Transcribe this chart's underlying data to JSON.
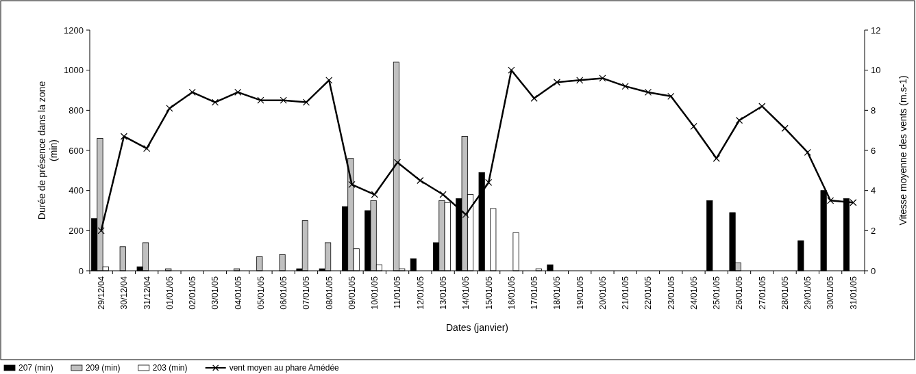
{
  "chart_data": {
    "type": "bar",
    "xlabel": "Dates (janvier)",
    "ylabel": "Durée de présence dans la zone (min)",
    "y2label": "Vitesse moyenne des vents (m.s-1)",
    "categories": [
      "29/12/04",
      "30/12/04",
      "31/12/04",
      "01/01/05",
      "02/01/05",
      "03/01/05",
      "04/01/05",
      "05/01/05",
      "06/01/05",
      "07/01/05",
      "08/01/05",
      "09/01/05",
      "10/01/05",
      "11/01/05",
      "12/01/05",
      "13/01/05",
      "14/01/05",
      "15/01/05",
      "16/01/05",
      "17/01/05",
      "18/01/05",
      "19/01/05",
      "20/01/05",
      "21/01/05",
      "22/01/05",
      "23/01/05",
      "24/01/05",
      "25/01/05",
      "26/01/05",
      "27/01/05",
      "28/01/05",
      "29/01/05",
      "30/01/05",
      "31/01/05"
    ],
    "series": [
      {
        "name": "207 (min)",
        "color": "#000000",
        "values": [
          260,
          null,
          20,
          null,
          null,
          null,
          null,
          null,
          null,
          10,
          10,
          320,
          300,
          null,
          60,
          140,
          360,
          490,
          null,
          null,
          30,
          null,
          null,
          null,
          null,
          null,
          null,
          350,
          290,
          null,
          null,
          150,
          400,
          360
        ]
      },
      {
        "name": "209 (min)",
        "color": "#c0c0c0",
        "values": [
          660,
          120,
          140,
          10,
          null,
          null,
          10,
          70,
          80,
          250,
          140,
          560,
          350,
          1040,
          null,
          350,
          670,
          null,
          null,
          null,
          null,
          null,
          null,
          null,
          null,
          null,
          null,
          null,
          40,
          null,
          null,
          null,
          null,
          null
        ]
      },
      {
        "name": "203 (min)",
        "color": "#ffffff",
        "values": [
          20,
          null,
          null,
          null,
          null,
          null,
          null,
          null,
          null,
          null,
          null,
          110,
          30,
          10,
          null,
          340,
          380,
          310,
          190,
          10,
          null,
          null,
          null,
          null,
          null,
          null,
          null,
          null,
          null,
          null,
          null,
          null,
          null,
          null
        ]
      },
      {
        "name": "vent moyen au phare Amédée",
        "type": "line",
        "axis": "y2",
        "color": "#000000",
        "values": [
          2.0,
          6.7,
          6.1,
          8.1,
          8.9,
          8.4,
          8.9,
          8.5,
          8.5,
          8.4,
          9.5,
          4.3,
          3.8,
          5.4,
          4.5,
          3.8,
          2.8,
          4.4,
          10.0,
          8.6,
          9.4,
          9.5,
          9.6,
          9.2,
          8.9,
          8.7,
          7.2,
          5.6,
          7.5,
          8.2,
          7.1,
          5.9,
          3.5,
          3.4
        ]
      }
    ],
    "ylim": [
      0,
      1200
    ],
    "yticks": [
      0,
      200,
      400,
      600,
      800,
      1000,
      1200
    ],
    "y2lim": [
      0,
      12
    ],
    "y2ticks": [
      0,
      2,
      4,
      6,
      8,
      10,
      12
    ],
    "marker": "cross",
    "legend": "bottom left",
    "grid": false
  }
}
